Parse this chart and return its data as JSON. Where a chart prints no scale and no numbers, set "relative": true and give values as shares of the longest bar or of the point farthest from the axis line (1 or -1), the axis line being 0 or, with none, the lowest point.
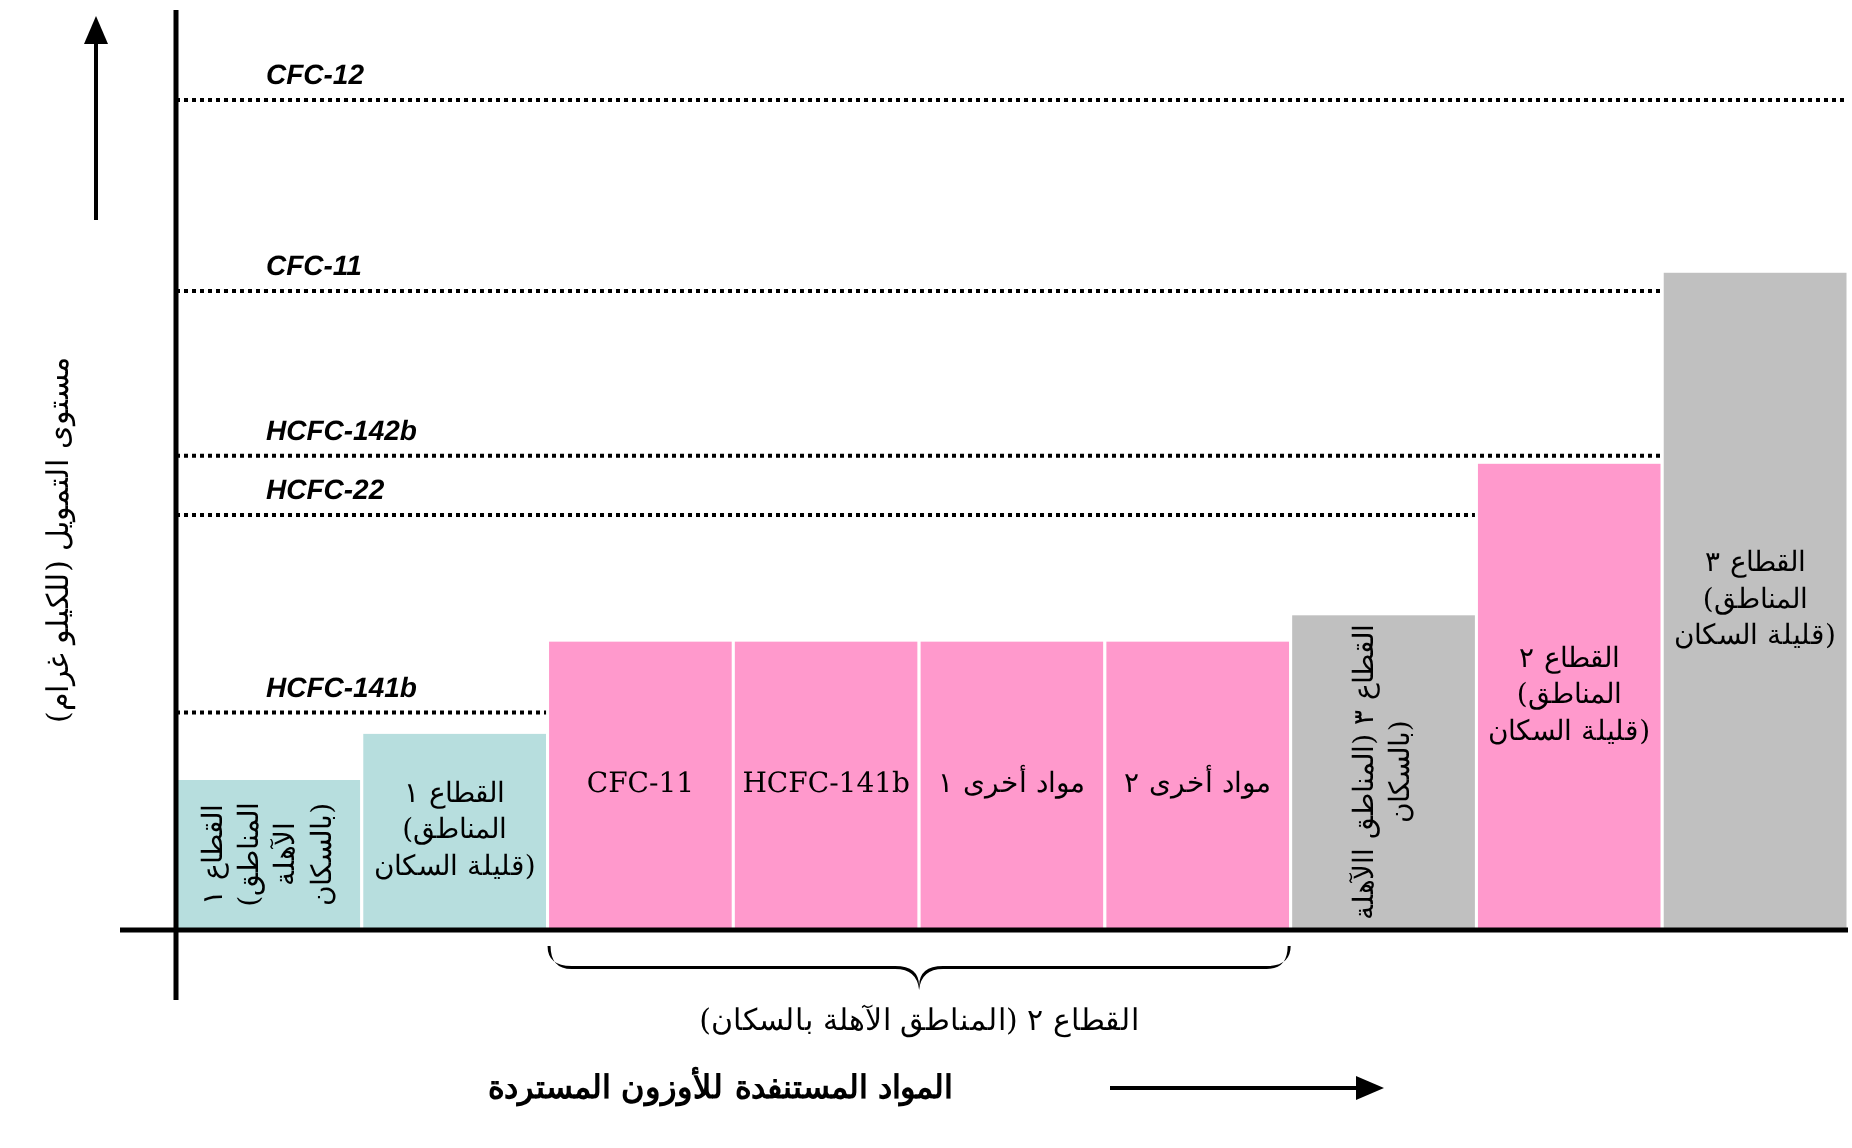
{
  "chart_data": {
    "type": "bar",
    "relative": true,
    "xlabel": "المواد المستنفدة للأوزون المستردة",
    "ylabel": "مستوى التمويل (للكيلو غرام)",
    "categories": [
      "القطاع ١ (المناطق الآهلة بالسكان)",
      "القطاع ١ (المناطق قليلة السكان)",
      "CFC-11",
      "HCFC-141b",
      "مواد أخرى ١",
      "مواد أخرى ٢",
      "القطاع ٣ (المناطق االآهلة بالسكان)",
      "القطاع ٢ (المناطق قليلة السكان)",
      "القطاع ٣ (المناطق قليلة السكان)"
    ],
    "values": [
      0.23,
      0.3,
      0.44,
      0.44,
      0.44,
      0.44,
      0.48,
      0.71,
      1
    ],
    "colors": [
      "#b7dede",
      "#b7dede",
      "#ff99cc",
      "#ff99cc",
      "#ff99cc",
      "#ff99cc",
      "#c0c0c0",
      "#ff99cc",
      "#c0c0c0"
    ],
    "ref_lines": [
      {
        "axis": "y",
        "value": 1.26,
        "label": "CFC-12",
        "line_style": "dotted",
        "color": "#000000"
      },
      {
        "axis": "y",
        "value": 0.97,
        "label": "CFC-11",
        "line_style": "dotted",
        "color": "#000000"
      },
      {
        "axis": "y",
        "value": 0.72,
        "label": "HCFC-142b",
        "line_style": "dotted",
        "color": "#000000"
      },
      {
        "axis": "y",
        "value": 0.63,
        "label": "HCFC-22",
        "line_style": "dotted",
        "color": "#000000"
      },
      {
        "axis": "y",
        "value": 0.33,
        "label": "HCFC-141b",
        "line_style": "dotted",
        "color": "#000000"
      }
    ],
    "annotations": [
      "القطاع ٢ (المناطق الآهلة بالسكان)"
    ]
  }
}
